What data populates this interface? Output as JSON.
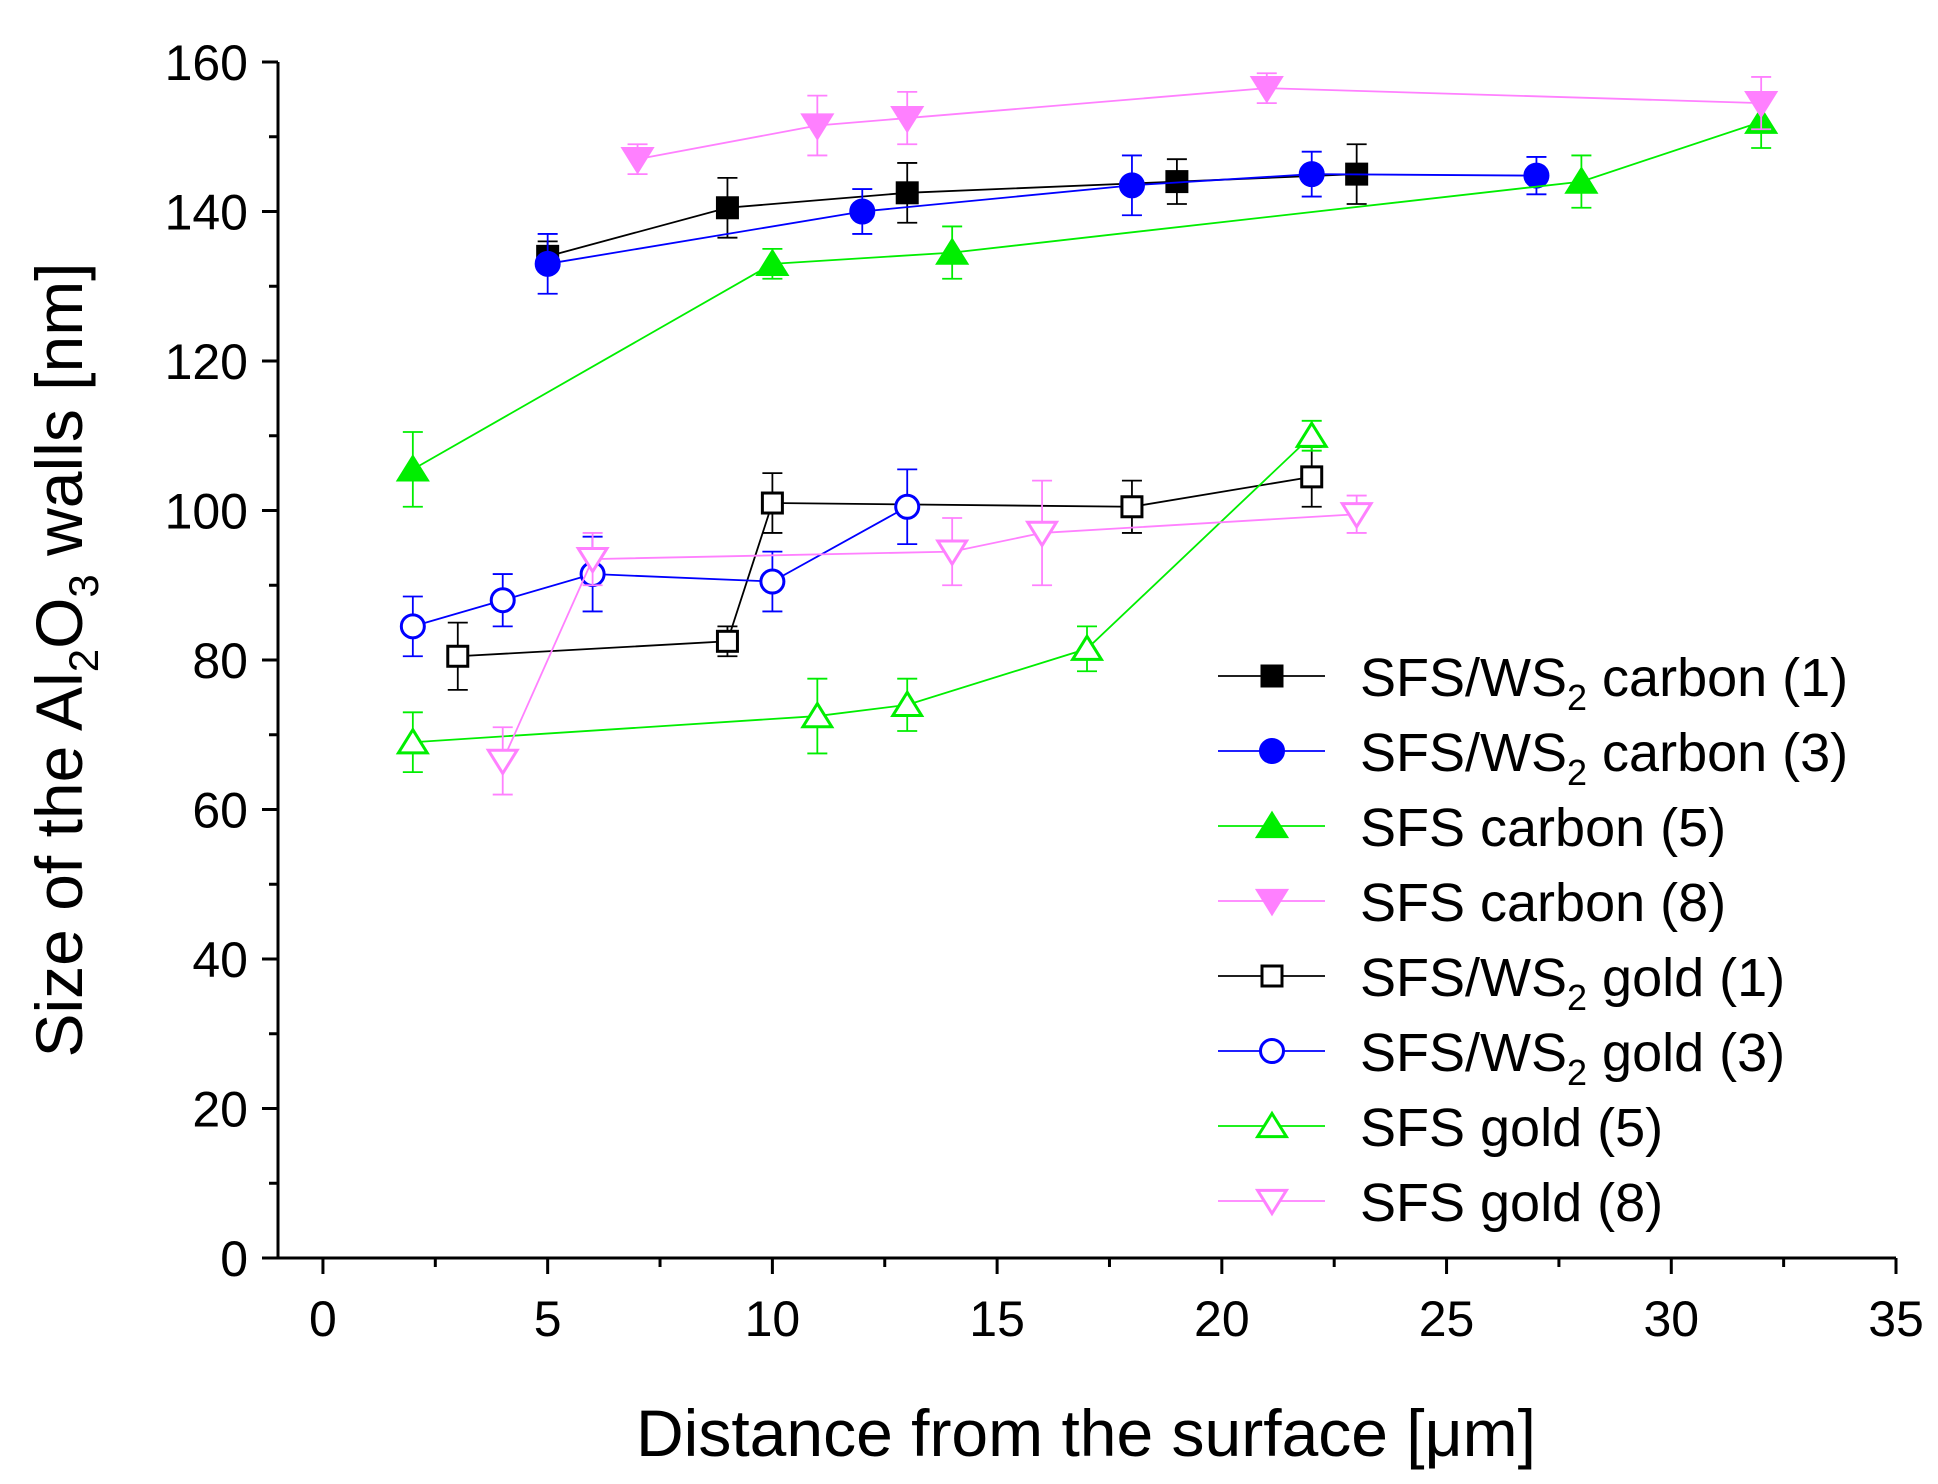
{
  "chart_data": {
    "type": "line",
    "title": "",
    "xlabel": "Distance from the surface [μm]",
    "ylabel": {
      "before": "Size of the Al",
      "sub1": "2",
      "mid": "O",
      "sub2": "3",
      "after": " walls [nm]"
    },
    "xlim": [
      -1,
      35
    ],
    "ylim": [
      0,
      160
    ],
    "xticks": [
      0,
      5,
      10,
      15,
      20,
      25,
      30,
      35
    ],
    "yticks": [
      0,
      20,
      40,
      60,
      80,
      100,
      120,
      140,
      160
    ],
    "grid": false,
    "legend_position": "bottom-right",
    "series": [
      {
        "name": "SFS/WS2 carbon (1)",
        "label": {
          "pre": "SFS/WS",
          "sub": "2",
          "post": " carbon (1)"
        },
        "color": "#000000",
        "marker": "square",
        "filled": true,
        "x": [
          5,
          9,
          13,
          19,
          23
        ],
        "y": [
          134,
          140.5,
          142.5,
          144,
          145
        ],
        "err": [
          2,
          4,
          4,
          3,
          4
        ]
      },
      {
        "name": "SFS/WS2 carbon (3)",
        "label": {
          "pre": "SFS/WS",
          "sub": "2",
          "post": " carbon (3)"
        },
        "color": "#0000ff",
        "marker": "circle",
        "filled": true,
        "x": [
          5,
          12,
          18,
          22,
          27
        ],
        "y": [
          133,
          140,
          143.5,
          145,
          144.8
        ],
        "err": [
          4,
          3,
          4,
          3,
          2.5
        ]
      },
      {
        "name": "SFS carbon (5)",
        "label": {
          "pre": "SFS carbon (5)",
          "sub": "",
          "post": ""
        },
        "color": "#00ee00",
        "marker": "triangle-up",
        "filled": true,
        "x": [
          2,
          10,
          14,
          28,
          32
        ],
        "y": [
          105.5,
          133,
          134.5,
          144,
          152
        ],
        "err": [
          5,
          2,
          3.5,
          3.5,
          3.5
        ]
      },
      {
        "name": "SFS carbon (8)",
        "label": {
          "pre": "SFS carbon (8)",
          "sub": "",
          "post": ""
        },
        "color": "#ff80ff",
        "marker": "triangle-down",
        "filled": true,
        "x": [
          7,
          11,
          13,
          21,
          32
        ],
        "y": [
          147,
          151.5,
          152.5,
          156.5,
          154.5
        ],
        "err": [
          2,
          4,
          3.5,
          2,
          3.5
        ]
      },
      {
        "name": "SFS/WS2 gold (1)",
        "label": {
          "pre": "SFS/WS",
          "sub": "2",
          "post": " gold (1)"
        },
        "color": "#000000",
        "marker": "square",
        "filled": false,
        "x": [
          3,
          9,
          10,
          18,
          22
        ],
        "y": [
          80.5,
          82.5,
          101,
          100.5,
          104.5
        ],
        "err": [
          4.5,
          2,
          4,
          3.5,
          4
        ]
      },
      {
        "name": "SFS/WS2 gold (3)",
        "label": {
          "pre": "SFS/WS",
          "sub": "2",
          "post": " gold (3)"
        },
        "color": "#0000ff",
        "marker": "circle",
        "filled": false,
        "x": [
          2,
          4,
          6,
          10,
          13
        ],
        "y": [
          84.5,
          88,
          91.5,
          90.5,
          100.5
        ],
        "err": [
          4,
          3.5,
          5,
          4,
          5
        ]
      },
      {
        "name": "SFS gold (5)",
        "label": {
          "pre": "SFS gold (5)",
          "sub": "",
          "post": ""
        },
        "color": "#00ee00",
        "marker": "triangle-up",
        "filled": false,
        "x": [
          2,
          11,
          13,
          17,
          22
        ],
        "y": [
          69,
          72.5,
          74,
          81.5,
          110
        ],
        "err": [
          4,
          5,
          3.5,
          3,
          2
        ]
      },
      {
        "name": "SFS gold (8)",
        "label": {
          "pre": "SFS gold (8)",
          "sub": "",
          "post": ""
        },
        "color": "#ff80ff",
        "marker": "triangle-down",
        "filled": false,
        "x": [
          4,
          6,
          14,
          16,
          23
        ],
        "y": [
          66.5,
          93.5,
          94.5,
          97,
          99.5
        ],
        "err": [
          4.5,
          3.5,
          4.5,
          7,
          2.5
        ]
      }
    ]
  }
}
